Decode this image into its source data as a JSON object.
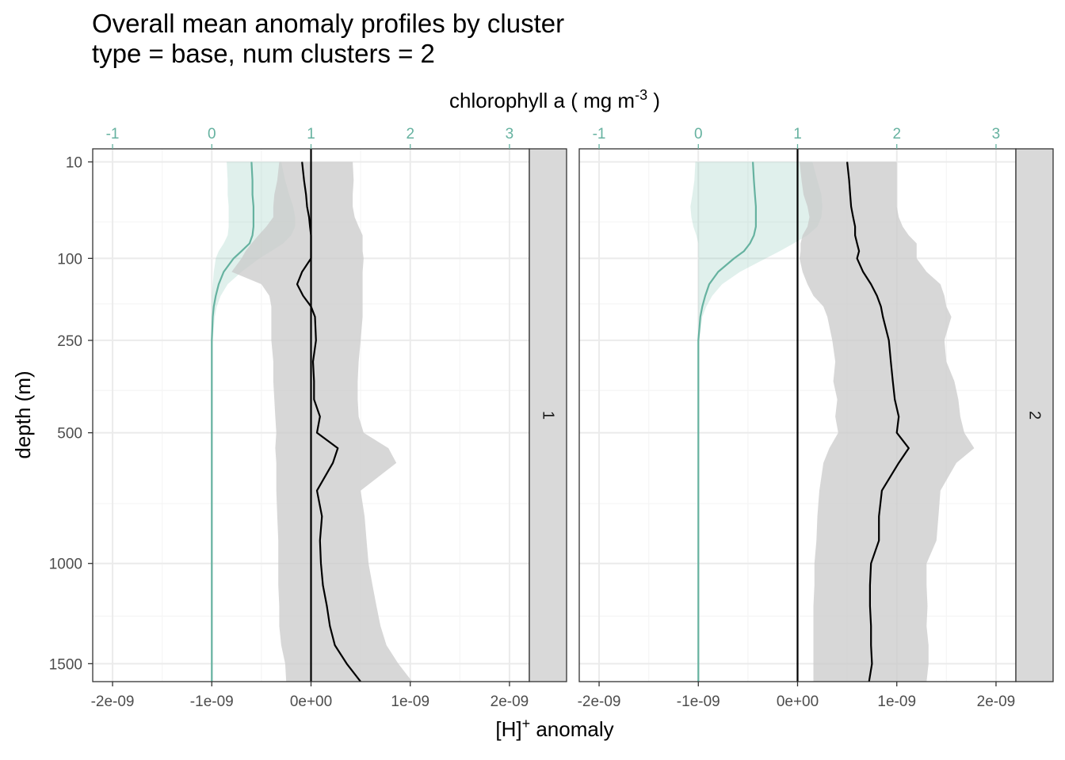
{
  "title": {
    "line1": "Overall mean anomaly profiles by cluster",
    "line2": "type = base, num clusters = 2"
  },
  "colors": {
    "chlorophyll": "#66b2a0",
    "chlorophyll_ribbon": "#66b2a0",
    "h_line": "#000000",
    "h_ribbon": "#c9c9c9",
    "grid_major": "#ebebeb",
    "grid_minor": "#f5f5f5",
    "strip_fill": "#d9d9d9"
  },
  "chart_data": {
    "type": "line",
    "facet_variable": "cluster",
    "y_scale": "reverse-sqrt",
    "ylabel": "depth (m)",
    "ylim": [
      1600,
      5
    ],
    "y_ticks": [
      10,
      100,
      250,
      500,
      1000,
      1500
    ],
    "xlabel_bottom": "[H]",
    "xlabel_bottom_sup": "+",
    "xlabel_bottom_suffix": " anomaly",
    "xlim_bottom": [
      -2.2e-09,
      2.2e-09
    ],
    "x_ticks_bottom": [
      -2e-09,
      -1e-09,
      0,
      1e-09,
      2e-09
    ],
    "x_tick_labels_bottom": [
      "-2e-09",
      "-1e-09",
      "0e+00",
      "1e-09",
      "2e-09"
    ],
    "xlabel_top": "chlorophyll a ( mg m",
    "xlabel_top_sup": "-3",
    "xlabel_top_suffix": " )",
    "xlim_top": [
      -1.2,
      3.2
    ],
    "x_ticks_top": [
      -1,
      0,
      1,
      2,
      3
    ],
    "x_tick_labels_top": [
      "-1",
      "0",
      "1",
      "2",
      "3"
    ],
    "reference_line_x": 0,
    "depths": [
      10,
      20,
      30,
      40,
      50,
      60,
      70,
      80,
      90,
      100,
      120,
      140,
      160,
      180,
      200,
      250,
      300,
      350,
      400,
      450,
      500,
      550,
      600,
      700,
      800,
      900,
      1000,
      1100,
      1200,
      1300,
      1400,
      1500,
      1600
    ],
    "panels": [
      {
        "strip": "1",
        "series": [
          {
            "variable": "chlorophyll",
            "axis": "top",
            "mean": [
              0.4,
              0.41,
              0.41,
              0.42,
              0.42,
              0.42,
              0.41,
              0.38,
              0.3,
              0.22,
              0.12,
              0.07,
              0.04,
              0.02,
              0.01,
              0.0,
              0.0,
              0.0,
              0.0,
              0.0,
              0.0,
              0.0,
              0.0,
              0.0,
              0.0,
              0.0,
              0.0,
              0.0,
              0.0,
              0.0,
              0.0,
              0.0,
              0.0
            ],
            "lower": [
              0.15,
              0.16,
              0.16,
              0.17,
              0.17,
              0.17,
              0.16,
              0.12,
              0.07,
              0.04,
              0.02,
              0.01,
              0.0,
              0.0,
              0.0,
              0.0,
              0.0,
              0.0,
              0.0,
              0.0,
              0.0,
              0.0,
              0.0,
              0.0,
              0.0,
              0.0,
              0.0,
              0.0,
              0.0,
              0.0,
              0.0,
              0.0,
              0.0
            ],
            "upper": [
              0.7,
              0.74,
              0.78,
              0.82,
              0.84,
              0.84,
              0.8,
              0.72,
              0.6,
              0.48,
              0.3,
              0.16,
              0.09,
              0.05,
              0.03,
              0.01,
              0.0,
              0.0,
              0.0,
              0.0,
              0.0,
              0.0,
              0.0,
              0.0,
              0.0,
              0.0,
              0.0,
              0.0,
              0.0,
              0.0,
              0.0,
              0.0,
              0.0
            ]
          },
          {
            "variable": "H_anomaly",
            "axis": "bottom",
            "mean": [
              -9e-11,
              -7e-11,
              -5e-11,
              -4e-11,
              -2e-11,
              -1e-11,
              0.0,
              0.0,
              0.0,
              0.0,
              -9e-11,
              -1.4e-10,
              -8e-11,
              0.0,
              4e-11,
              5e-11,
              2e-11,
              3e-11,
              3e-11,
              9e-11,
              6e-11,
              2.7e-10,
              2.2e-10,
              6e-11,
              1.1e-10,
              9e-11,
              1e-10,
              1.2e-10,
              1.6e-10,
              1.9e-10,
              2.4e-10,
              3.6e-10,
              5e-10
            ],
            "lower": [
              -3.2e-10,
              -3.4e-10,
              -3.7e-10,
              -3.8e-10,
              -3.8e-10,
              -4.5e-10,
              -5.3e-10,
              -6e-10,
              -6.6e-10,
              -7e-10,
              -8e-10,
              -5e-10,
              -4.2e-10,
              -4e-10,
              -4e-10,
              -4e-10,
              -3.8e-10,
              -3.8e-10,
              -3.7e-10,
              -3.6e-10,
              -3.5e-10,
              -3.6e-10,
              -3.5e-10,
              -3.5e-10,
              -3.4e-10,
              -3.3e-10,
              -3.3e-10,
              -3.3e-10,
              -3.2e-10,
              -3.2e-10,
              -3e-10,
              -2.6e-10,
              -2.5e-10
            ],
            "upper": [
              4.2e-10,
              4.3e-10,
              4.2e-10,
              4.2e-10,
              4.4e-10,
              4.8e-10,
              5.2e-10,
              5.2e-10,
              5.2e-10,
              5.3e-10,
              5.2e-10,
              5.2e-10,
              5.2e-10,
              5.2e-10,
              5.2e-10,
              5e-10,
              4.8e-10,
              4.7e-10,
              4.7e-10,
              4.8e-10,
              5.3e-10,
              7.8e-10,
              8.6e-10,
              5e-10,
              5.4e-10,
              5.6e-10,
              5.8e-10,
              6.2e-10,
              6.6e-10,
              7e-10,
              7.6e-10,
              8.8e-10,
              1.02e-09
            ]
          }
        ]
      },
      {
        "strip": "2",
        "series": [
          {
            "variable": "chlorophyll",
            "axis": "top",
            "mean": [
              0.55,
              0.56,
              0.57,
              0.58,
              0.58,
              0.58,
              0.56,
              0.52,
              0.46,
              0.36,
              0.2,
              0.11,
              0.07,
              0.04,
              0.02,
              0.0,
              0.0,
              0.0,
              0.0,
              0.0,
              0.0,
              0.0,
              0.0,
              0.0,
              0.0,
              0.0,
              0.0,
              0.0,
              0.0,
              0.0,
              0.0,
              0.0,
              0.0
            ],
            "lower": [
              -0.03,
              -0.04,
              -0.06,
              -0.08,
              -0.07,
              -0.05,
              -0.02,
              0.0,
              0.0,
              0.0,
              0.0,
              0.0,
              0.0,
              0.0,
              0.0,
              0.0,
              0.0,
              0.0,
              0.0,
              0.0,
              0.0,
              0.0,
              0.0,
              0.0,
              0.0,
              0.0,
              0.0,
              0.0,
              0.0,
              0.0,
              0.0,
              0.0,
              0.0
            ],
            "upper": [
              1.15,
              1.2,
              1.24,
              1.25,
              1.24,
              1.2,
              1.1,
              0.96,
              0.82,
              0.68,
              0.42,
              0.24,
              0.14,
              0.08,
              0.04,
              0.01,
              0.0,
              0.0,
              0.0,
              0.0,
              0.0,
              0.0,
              0.0,
              0.0,
              0.0,
              0.0,
              0.0,
              0.0,
              0.0,
              0.0,
              0.0,
              0.0,
              0.0
            ],
            "ribbon_max_depth": 270
          },
          {
            "variable": "H_anomaly",
            "axis": "bottom",
            "mean": [
              5e-10,
              5.2e-10,
              5.3e-10,
              5.4e-10,
              5.6e-10,
              5.8e-10,
              5.8e-10,
              6e-10,
              6.2e-10,
              6e-10,
              6.6e-10,
              7.4e-10,
              8e-10,
              8.4e-10,
              8.6e-10,
              9.2e-10,
              9.4e-10,
              9.6e-10,
              9.8e-10,
              1.02e-09,
              1e-09,
              1.12e-09,
              1.02e-09,
              8.5e-10,
              8.2e-10,
              8.2e-10,
              7.4e-10,
              7.3e-10,
              7.3e-10,
              7.4e-10,
              7.4e-10,
              7.5e-10,
              7.2e-10
            ],
            "lower": [
              2e-11,
              4e-11,
              6e-11,
              1e-10,
              1.2e-10,
              1e-10,
              5e-11,
              3e-11,
              3e-11,
              2e-11,
              5e-11,
              1e-10,
              1.6e-10,
              2.6e-10,
              3e-10,
              3.5e-10,
              3.8e-10,
              3.6e-10,
              4e-10,
              3.8e-10,
              4.1e-10,
              3.2e-10,
              2.6e-10,
              2.2e-10,
              2e-10,
              1.9e-10,
              1.7e-10,
              1.7e-10,
              1.6e-10,
              1.6e-10,
              1.6e-10,
              1.6e-10,
              1.6e-10
            ],
            "upper": [
              1e-09,
              1e-09,
              1e-09,
              1e-09,
              1.02e-09,
              1.06e-09,
              1.12e-09,
              1.2e-09,
              1.2e-09,
              1.2e-09,
              1.3e-09,
              1.44e-09,
              1.48e-09,
              1.5e-09,
              1.55e-09,
              1.48e-09,
              1.5e-09,
              1.58e-09,
              1.62e-09,
              1.64e-09,
              1.68e-09,
              1.78e-09,
              1.6e-09,
              1.44e-09,
              1.42e-09,
              1.4e-09,
              1.3e-09,
              1.3e-09,
              1.31e-09,
              1.3e-09,
              1.32e-09,
              1.32e-09,
              1.3e-09
            ]
          }
        ]
      }
    ]
  }
}
